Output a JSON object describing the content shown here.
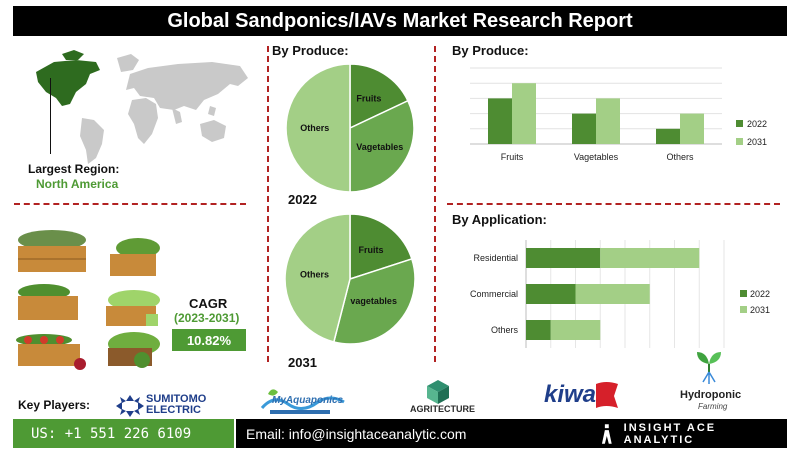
{
  "title": "Global Sandponics/IAVs Market Research Report",
  "region": {
    "label": "Largest Region:",
    "value": "North America"
  },
  "cagr": {
    "label": "CAGR",
    "period": "(2023-2031)",
    "value": "10.82%"
  },
  "pie_section": {
    "title": "By Produce:",
    "year_2022": "2022",
    "year_2031": "2031"
  },
  "key_players_label": "Key Players:",
  "logos": {
    "sumitomo": "SUMITOMO ELECTRIC",
    "myaquaponics": "MyAquaponics",
    "agritecture": "AGRITECTURE",
    "kiwa": "kiwa",
    "hydroponic": "Hydroponic",
    "hydroponic_sub": "Farming"
  },
  "footer": {
    "phone": "US: +1 551 226 6109",
    "email": "Email: info@insightaceanalytic.com",
    "brand": "INSIGHT ACE ANALYTIC"
  },
  "colors": {
    "green": "#4e9a34",
    "dark_green": "#3f7f2e",
    "light_green": "#a8d08d",
    "mid_green": "#70ad47",
    "dash": "#b22222"
  },
  "chart_data": [
    {
      "type": "pie",
      "title": "By Produce:",
      "year": "2022",
      "categories": [
        "Fruits",
        "Vagetables",
        "Others"
      ],
      "values": [
        18,
        32,
        50
      ],
      "colors": [
        "#4e8c32",
        "#6aa84f",
        "#a3cf86"
      ]
    },
    {
      "type": "pie",
      "year": "2031",
      "categories": [
        "Fruits",
        "vagetables",
        "Others"
      ],
      "values": [
        20,
        34,
        46
      ],
      "colors": [
        "#4e8c32",
        "#6aa84f",
        "#a3cf86"
      ]
    },
    {
      "type": "bar",
      "title": "By Produce:",
      "categories": [
        "Fruits",
        "Vagetables",
        "Others"
      ],
      "series": [
        {
          "name": "2022",
          "values": [
            48,
            32,
            16
          ],
          "color": "#4e8c32"
        },
        {
          "name": "2031",
          "values": [
            64,
            48,
            32
          ],
          "color": "#a3cf86"
        }
      ],
      "ylim": [
        0,
        80
      ],
      "grid": true,
      "legend": "right"
    },
    {
      "type": "bar",
      "orientation": "horizontal",
      "title": "By Application:",
      "categories": [
        "Residential",
        "Commercial",
        "Others"
      ],
      "series": [
        {
          "name": "2022",
          "values": [
            30,
            20,
            10
          ],
          "color": "#4e8c32"
        },
        {
          "name": "2031",
          "values": [
            40,
            30,
            20
          ],
          "color": "#a3cf86"
        }
      ],
      "stacked": true,
      "xlim": [
        0,
        80
      ],
      "grid": true,
      "legend": "right"
    }
  ]
}
